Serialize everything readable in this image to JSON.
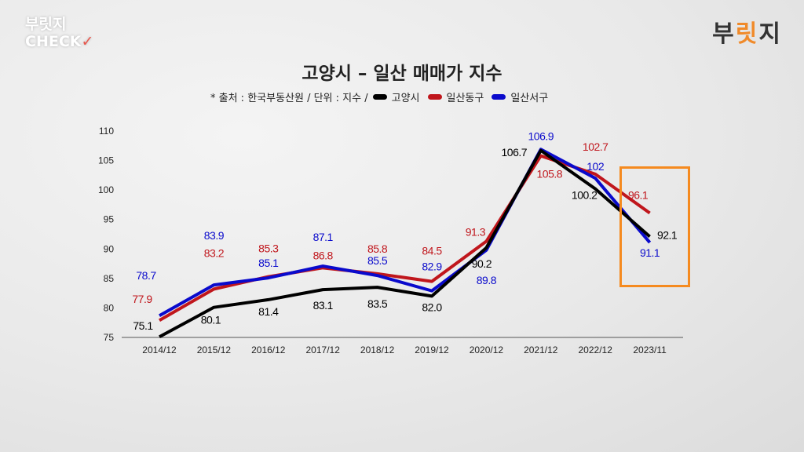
{
  "brand": {
    "line1": "부릿지",
    "line2": "CHECK",
    "check": "✓"
  },
  "logo": {
    "text_a": "부",
    "text_b": "릿",
    "text_c": "지"
  },
  "chart_data": {
    "type": "line",
    "title": "고양시 – 일산 매매가 지수",
    "source_note": "* 출처 : 한국부동산원 / 단위 : 지수 /",
    "categories": [
      "2014/12",
      "2015/12",
      "2016/12",
      "2017/12",
      "2018/12",
      "2019/12",
      "2020/12",
      "2021/12",
      "2022/12",
      "2023/11"
    ],
    "ylim": [
      75,
      110
    ],
    "yticks": [
      75,
      80,
      85,
      90,
      95,
      100,
      105,
      110
    ],
    "legend_position": "top",
    "highlight_category": "2023/11",
    "series": [
      {
        "name": "고양시",
        "color": "#000000",
        "values": [
          75.1,
          80.1,
          81.4,
          83.1,
          83.5,
          82.0,
          90.2,
          106.7,
          100.2,
          92.1
        ],
        "labels": [
          "75.1",
          "80.1",
          "81.4",
          "83.1",
          "83.5",
          "82.0",
          "90.2",
          "106.7",
          "100.2",
          "92.1"
        ]
      },
      {
        "name": "일산동구",
        "color": "#c0161c",
        "values": [
          77.9,
          83.2,
          85.3,
          86.8,
          85.8,
          84.5,
          91.3,
          105.8,
          102.7,
          96.1
        ],
        "labels": [
          "77.9",
          "83.2",
          "85.3",
          "86.8",
          "85.8",
          "84.5",
          "91.3",
          "105.8",
          "102.7",
          "96.1"
        ]
      },
      {
        "name": "일산서구",
        "color": "#0a0acc",
        "values": [
          78.7,
          83.9,
          85.1,
          87.1,
          85.5,
          82.9,
          89.8,
          106.9,
          102.0,
          91.1
        ],
        "labels": [
          "78.7",
          "83.9",
          "85.1",
          "87.1",
          "85.5",
          "82.9",
          "89.8",
          "106.9",
          "102",
          "91.1"
        ]
      }
    ],
    "highlight_color": "#f58a1f"
  }
}
